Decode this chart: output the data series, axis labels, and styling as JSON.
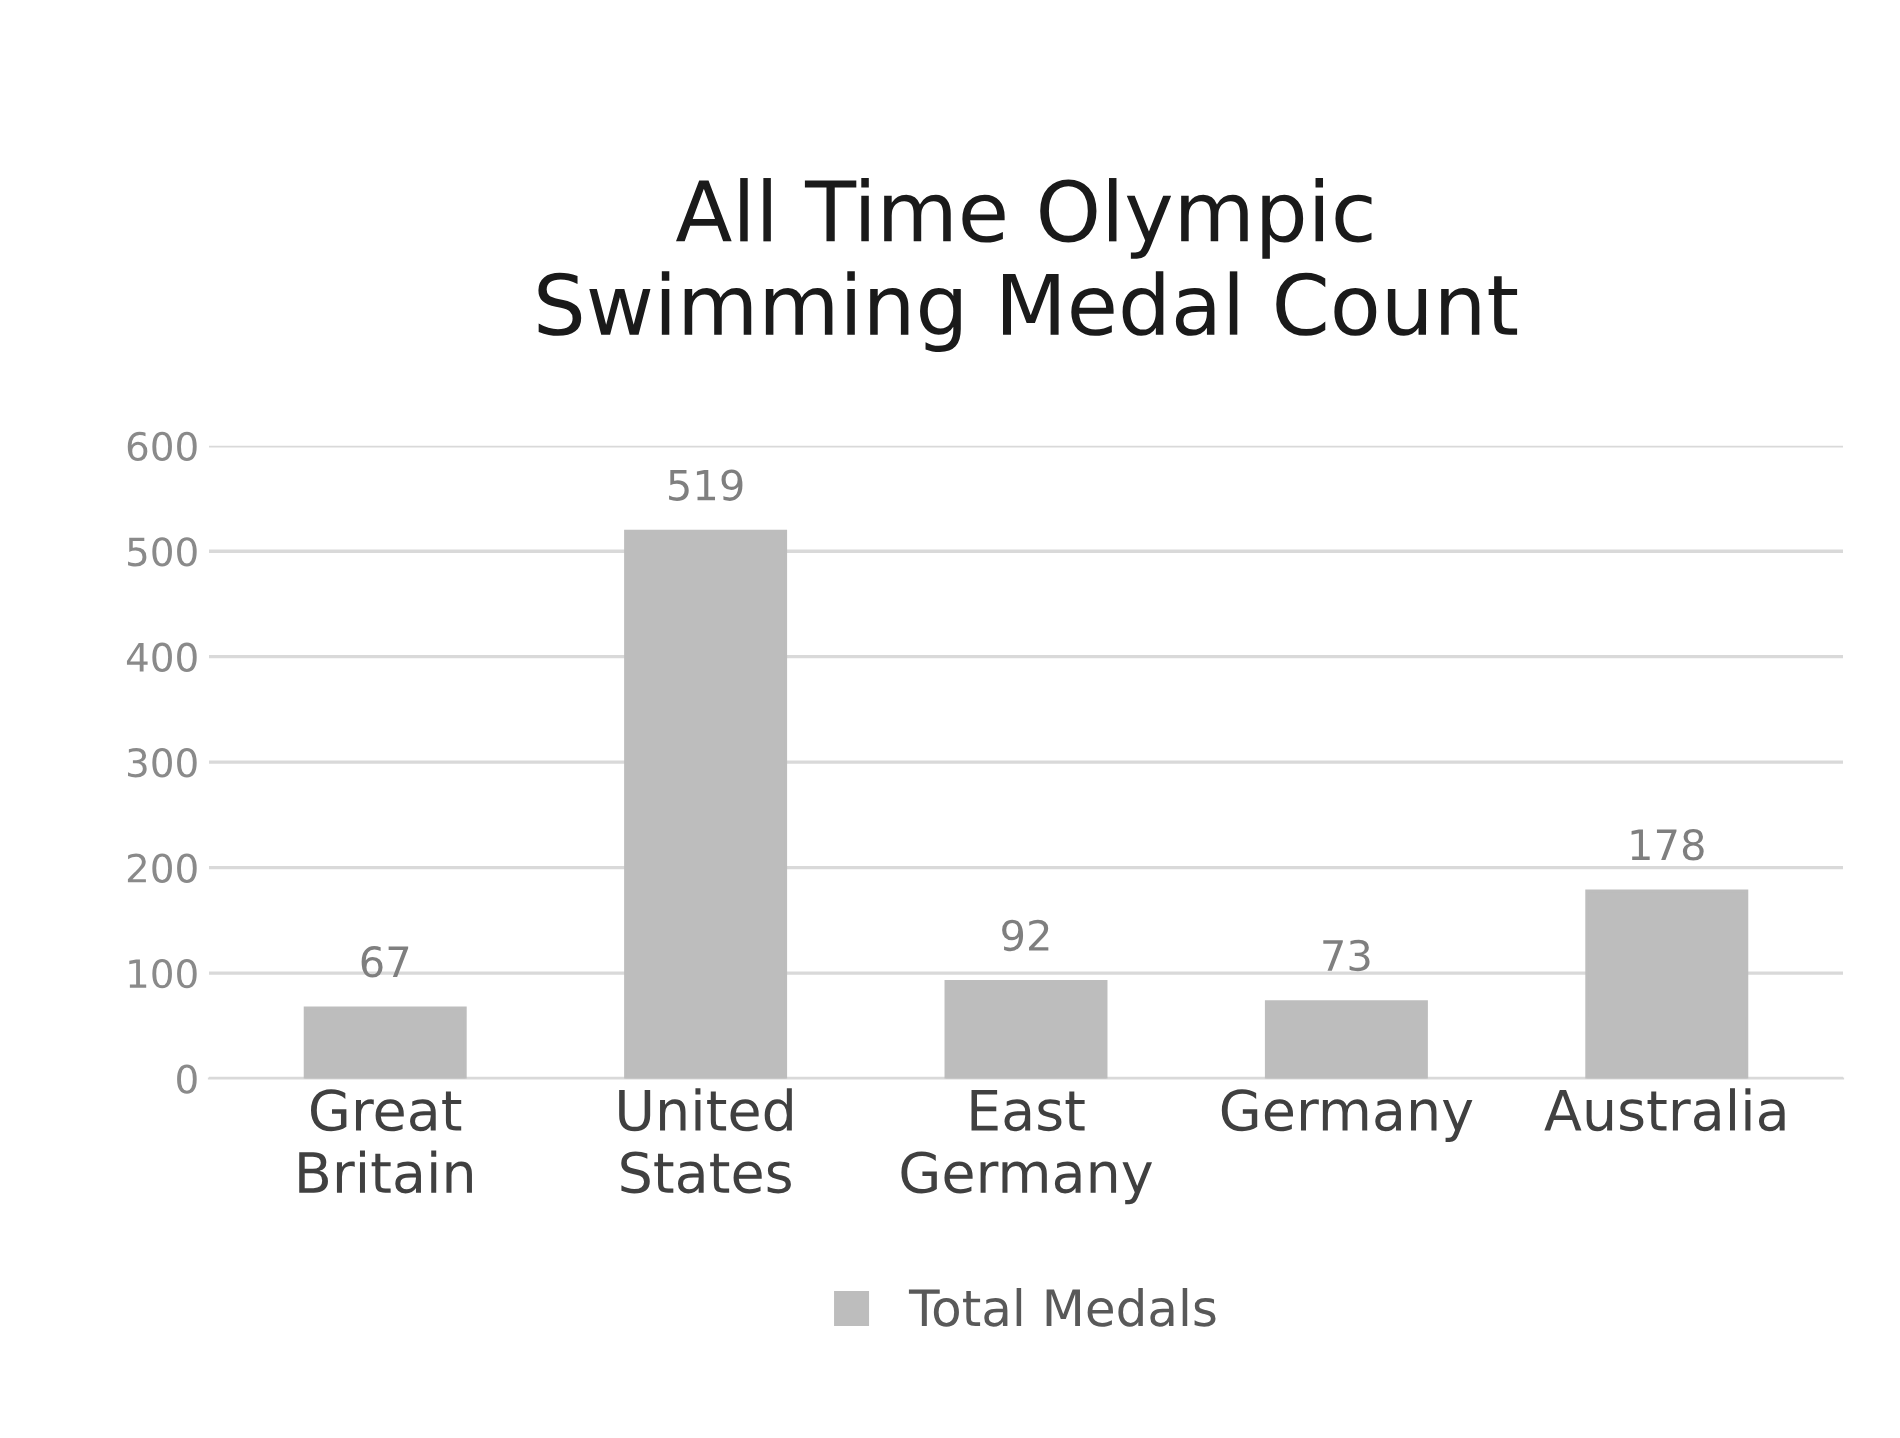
{
  "chart_data": {
    "type": "bar",
    "title": "All Time Olympic\nSwimming Medal Count",
    "categories": [
      "Great\nBritain",
      "United\nStates",
      "East\nGermany",
      "Germany",
      "Australia"
    ],
    "series": [
      {
        "name": "Total Medals",
        "color": "#bdbdbd",
        "values": [
          67,
          519,
          92,
          73,
          178
        ]
      }
    ],
    "ylim": [
      0,
      600
    ],
    "yticks": [
      0,
      100,
      200,
      300,
      400,
      500,
      600
    ],
    "grid": "y",
    "legend": "bottom",
    "data_labels": true
  }
}
